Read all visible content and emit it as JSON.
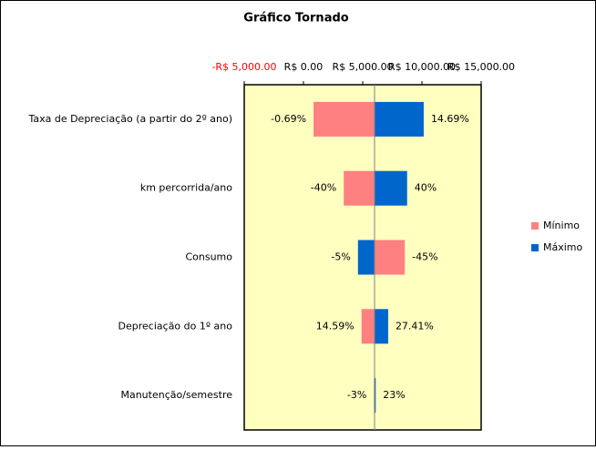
{
  "chart_data": {
    "type": "tornado",
    "title": "Gráfico Tornado",
    "categories": [
      "Taxa de Depreciação (a partir do 2º ano)",
      "km percorrida/ano",
      "Consumo",
      "Depreciação do 1º ano",
      "Manutenção/semestre"
    ],
    "base": 6000,
    "series": [
      {
        "name": "Mínimo",
        "color": "#ff8080",
        "values": [
          850,
          3400,
          8550,
          4900,
          5950
        ],
        "data_labels": [
          "-0.69%",
          "-40%",
          "-45%",
          "14.59%",
          "-3%"
        ]
      },
      {
        "name": "Máximo",
        "color": "#0066cc",
        "values": [
          10150,
          8750,
          4600,
          7150,
          6100
        ],
        "data_labels": [
          "14.69%",
          "40%",
          "-5%",
          "27.41%",
          "23%"
        ]
      }
    ],
    "xlim": [
      -5000,
      15000
    ],
    "xticks": [
      {
        "value": -5000,
        "label": "-R$ 5,000.00"
      },
      {
        "value": 0,
        "label": "R$ 0.00"
      },
      {
        "value": 5000,
        "label": "R$ 5,000.00"
      },
      {
        "value": 10000,
        "label": "R$ 10,000.00"
      },
      {
        "value": 15000,
        "label": "R$ 15,000.00"
      }
    ],
    "negative_tick_color": "#ff0000",
    "plot_background": "#ffffc0",
    "legend": "right"
  }
}
